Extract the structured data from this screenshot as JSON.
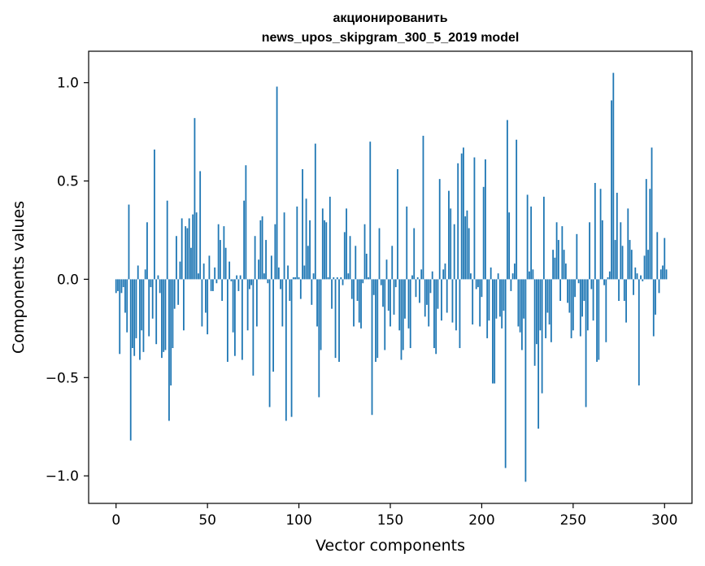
{
  "chart_data": {
    "type": "bar",
    "title_line1": "акционированить",
    "title_line2": "news_upos_skipgram_300_5_2019 model",
    "xlabel": "Vector components",
    "ylabel": "Components values",
    "xlim": [
      -15,
      315
    ],
    "ylim": [
      -1.14,
      1.16
    ],
    "xticks": [
      {
        "value": 0,
        "label": "0"
      },
      {
        "value": 50,
        "label": "50"
      },
      {
        "value": 100,
        "label": "100"
      },
      {
        "value": 150,
        "label": "150"
      },
      {
        "value": 200,
        "label": "200"
      },
      {
        "value": 250,
        "label": "250"
      },
      {
        "value": 300,
        "label": "300"
      }
    ],
    "yticks": [
      {
        "value": -1.0,
        "label": "−1.0"
      },
      {
        "value": -0.5,
        "label": "−0.5"
      },
      {
        "value": 0.0,
        "label": "0.0"
      },
      {
        "value": 0.5,
        "label": "0.5"
      },
      {
        "value": 1.0,
        "label": "1.0"
      }
    ],
    "bar_color": "#1f77b4",
    "values": [
      -0.07,
      -0.06,
      -0.38,
      -0.07,
      -0.04,
      -0.17,
      -0.27,
      0.38,
      -0.82,
      -0.35,
      -0.39,
      -0.3,
      0.07,
      -0.41,
      -0.26,
      -0.37,
      0.05,
      0.29,
      -0.29,
      -0.04,
      -0.2,
      0.66,
      -0.33,
      0.02,
      -0.07,
      -0.4,
      -0.37,
      -0.36,
      0.4,
      -0.72,
      -0.54,
      -0.35,
      -0.15,
      0.22,
      -0.13,
      0.09,
      0.31,
      -0.26,
      0.27,
      0.26,
      0.31,
      0.16,
      0.33,
      0.82,
      0.34,
      0.03,
      0.55,
      -0.24,
      0.08,
      -0.17,
      -0.28,
      0.12,
      -0.06,
      -0.06,
      0.06,
      -0.02,
      0.28,
      0.2,
      -0.11,
      0.27,
      0.16,
      -0.42,
      0.09,
      -0.01,
      -0.27,
      -0.39,
      0.02,
      -0.06,
      0.02,
      -0.41,
      0.4,
      0.58,
      -0.26,
      -0.05,
      -0.03,
      -0.49,
      0.22,
      -0.24,
      0.1,
      0.3,
      0.32,
      0.03,
      0.2,
      -0.02,
      -0.65,
      0.12,
      -0.47,
      0.28,
      0.98,
      0.06,
      -0.05,
      -0.24,
      0.34,
      -0.72,
      0.07,
      -0.11,
      -0.7,
      0.01,
      0.01,
      0.37,
      0.01,
      -0.1,
      0.56,
      0.07,
      0.41,
      0.17,
      0.3,
      -0.13,
      0.03,
      0.69,
      -0.24,
      -0.6,
      -0.36,
      0.36,
      0.3,
      0.29,
      0.01,
      0.42,
      -0.15,
      0.01,
      -0.4,
      0.01,
      -0.42,
      0.01,
      -0.03,
      0.24,
      0.36,
      0.03,
      0.22,
      -0.1,
      -0.24,
      0.17,
      -0.11,
      -0.22,
      -0.25,
      -0.02,
      0.28,
      0.13,
      0.01,
      0.7,
      -0.69,
      -0.08,
      -0.42,
      -0.4,
      0.26,
      -0.03,
      -0.14,
      -0.36,
      0.1,
      -0.16,
      -0.24,
      0.17,
      -0.18,
      -0.04,
      0.56,
      -0.26,
      -0.41,
      -0.36,
      -0.2,
      0.37,
      -0.25,
      -0.35,
      0.02,
      0.26,
      -0.09,
      0.01,
      -0.12,
      0.05,
      0.73,
      -0.19,
      -0.13,
      -0.24,
      -0.07,
      0.04,
      -0.35,
      -0.38,
      -0.15,
      0.51,
      -0.21,
      0.05,
      0.08,
      -0.17,
      0.45,
      0.36,
      -0.22,
      0.28,
      -0.26,
      0.59,
      -0.35,
      0.64,
      0.67,
      0.32,
      0.35,
      0.26,
      0.03,
      -0.23,
      0.62,
      -0.05,
      -0.04,
      -0.24,
      -0.09,
      0.47,
      0.61,
      -0.3,
      -0.21,
      0.06,
      -0.53,
      -0.53,
      -0.2,
      0.03,
      -0.19,
      -0.25,
      -0.16,
      -0.96,
      0.81,
      0.34,
      -0.06,
      0.03,
      0.08,
      0.71,
      -0.24,
      -0.27,
      -0.36,
      -0.2,
      -1.03,
      0.43,
      0.04,
      0.37,
      0.05,
      -0.44,
      -0.33,
      -0.76,
      -0.26,
      -0.58,
      0.42,
      -0.3,
      -0.17,
      -0.23,
      -0.32,
      0.15,
      0.11,
      0.29,
      0.2,
      -0.11,
      0.27,
      0.15,
      0.08,
      -0.12,
      -0.17,
      -0.3,
      -0.26,
      -0.09,
      0.23,
      -0.02,
      -0.29,
      -0.19,
      -0.11,
      -0.65,
      -0.26,
      0.29,
      -0.05,
      -0.21,
      0.49,
      -0.42,
      -0.41,
      0.46,
      0.3,
      -0.03,
      -0.32,
      0.01,
      0.04,
      0.91,
      1.05,
      0.2,
      0.44,
      -0.11,
      0.29,
      0.17,
      -0.11,
      -0.22,
      0.36,
      0.2,
      0.15,
      -0.08,
      0.06,
      0.03,
      -0.54,
      0.02,
      -0.01,
      0.12,
      0.51,
      0.15,
      0.46,
      0.67,
      -0.29,
      -0.18,
      0.24,
      -0.07,
      0.05,
      0.07,
      0.21,
      0.05
    ]
  }
}
